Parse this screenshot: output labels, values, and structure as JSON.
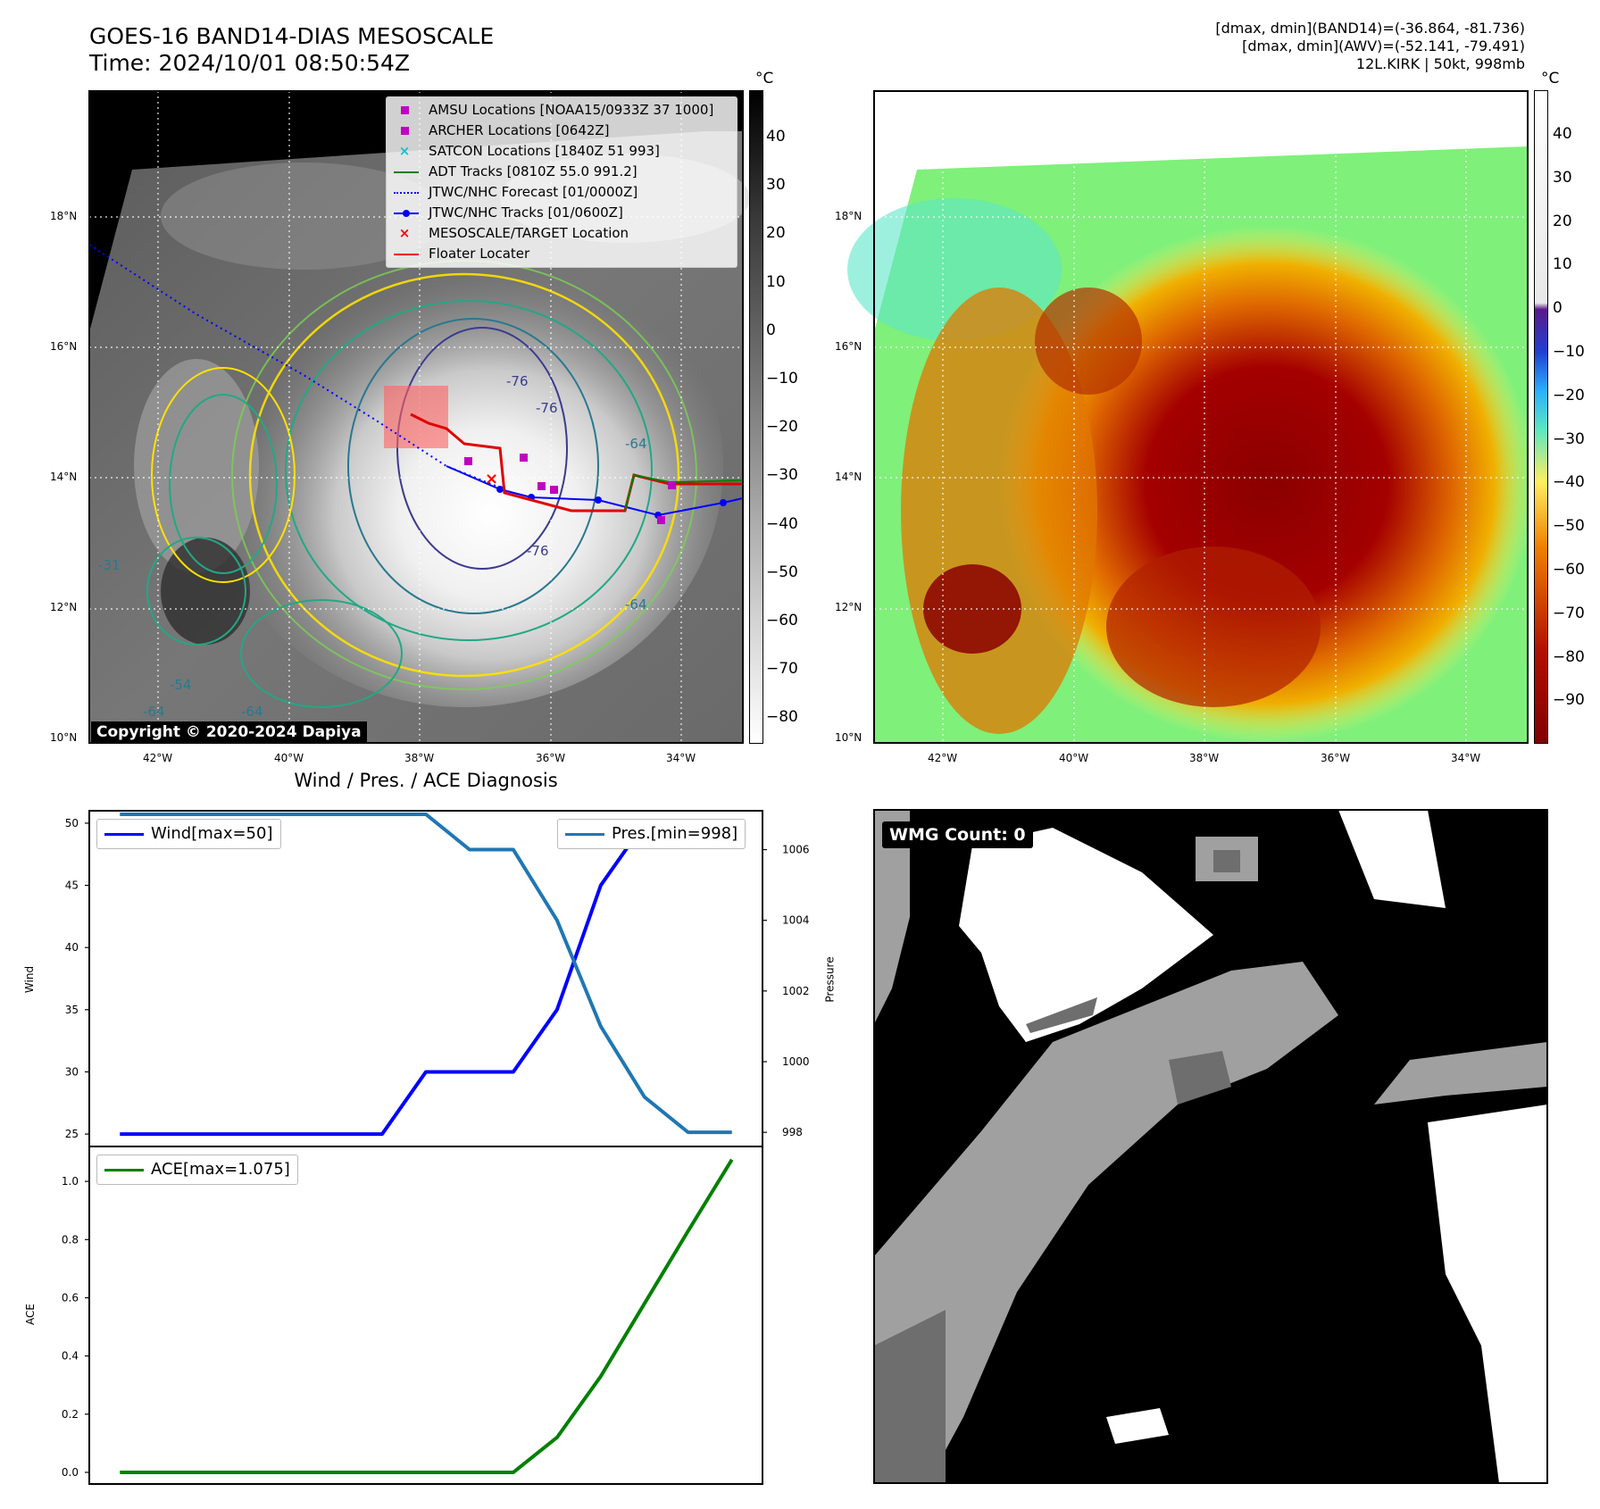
{
  "header": {
    "title": "GOES-16 BAND14-DIAS MESOSCALE",
    "time": "Time: 2024/10/01 08:50:54Z",
    "info_line1": "[dmax, dmin](BAND14)=(-36.864, -81.736)",
    "info_line2": "[dmax, dmin](AWV)=(-52.141, -79.491)",
    "info_line3": "12L.KIRK | 50kt, 998mb"
  },
  "map_axes": {
    "lat_labels": [
      "18°N",
      "16°N",
      "14°N",
      "12°N",
      "10°N"
    ],
    "lon_labels": [
      "42°W",
      "40°W",
      "38°W",
      "36°W",
      "34°W"
    ]
  },
  "left_map": {
    "legend": [
      {
        "label": "AMSU Locations [NOAA15/0933Z 37 1000]",
        "kind": "square",
        "color": "#c000c0"
      },
      {
        "label": "ARCHER Locations [0642Z]",
        "kind": "square",
        "color": "#c000c0"
      },
      {
        "label": "SATCON Locations [1840Z 51 993]",
        "kind": "x",
        "color": "#17becf"
      },
      {
        "label": "ADT Tracks [0810Z 55.0 991.2]",
        "kind": "line",
        "color": "#008000"
      },
      {
        "label": "JTWC/NHC Forecast [01/0000Z]",
        "kind": "dotted",
        "color": "#0000ff"
      },
      {
        "label": "JTWC/NHC Tracks [01/0600Z]",
        "kind": "linedot",
        "color": "#0000ff"
      },
      {
        "label": "MESOSCALE/TARGET Location",
        "kind": "x",
        "color": "#ff0000"
      },
      {
        "label": "Floater Locater",
        "kind": "line",
        "color": "#ff0000"
      }
    ],
    "contour_labels": [
      "-76",
      "-76",
      "-64",
      "-76",
      "-64",
      "-64",
      "-54",
      "-31",
      "-64"
    ],
    "copyright": "Copyright © 2020-2024 Dapiya",
    "colorbar": {
      "unit": "°C",
      "ticks": [
        "40",
        "30",
        "20",
        "10",
        "0",
        "−10",
        "−20",
        "−30",
        "−40",
        "−50",
        "−60",
        "−70",
        "−80"
      ],
      "range": [
        -85,
        50
      ]
    }
  },
  "right_map": {
    "colorbar": {
      "unit": "°C",
      "ticks": [
        "40",
        "30",
        "20",
        "10",
        "0",
        "−10",
        "−20",
        "−30",
        "−40",
        "−50",
        "−60",
        "−70",
        "−80",
        "−90"
      ],
      "range": [
        -100,
        50
      ]
    }
  },
  "diagnosis": {
    "title": "Wind / Pres. / ACE Diagnosis",
    "wind_ylabel": "Wind",
    "pressure_ylabel": "Pressure",
    "ace_ylabel": "ACE",
    "wind_legend": "Wind[max=50]",
    "pres_legend": "Pres.[min=998]",
    "ace_legend": "ACE[max=1.075]",
    "wind_ticks": [
      "50",
      "45",
      "40",
      "35",
      "30",
      "25"
    ],
    "pres_ticks": [
      "1006",
      "1004",
      "1002",
      "1000",
      "998"
    ],
    "ace_ticks": [
      "1.0",
      "0.8",
      "0.6",
      "0.4",
      "0.2",
      "0.0"
    ]
  },
  "wmg": {
    "label": "WMG Count: 0"
  },
  "chart_data": [
    {
      "type": "line",
      "title": "Wind / Pres. / ACE Diagnosis",
      "x": [
        0,
        1,
        2,
        3,
        4,
        5,
        6,
        7,
        8,
        9,
        10,
        11,
        12,
        13,
        14
      ],
      "ylabel": "Wind",
      "ylim": [
        24,
        51
      ],
      "series": [
        {
          "name": "Wind[max=50]",
          "color": "#0000ff",
          "axis": "left",
          "values": [
            25,
            25,
            25,
            25,
            25,
            25,
            25,
            30,
            30,
            30,
            35,
            45,
            50,
            50,
            50
          ]
        },
        {
          "name": "Pres.[min=998]",
          "color": "#1f77b4",
          "axis": "right",
          "ylabel": "Pressure",
          "ylim": [
            997.6,
            1007.1
          ],
          "values": [
            1007,
            1007,
            1007,
            1007,
            1007,
            1007,
            1007,
            1007,
            1006,
            1006,
            1004,
            1001,
            999,
            998,
            998
          ]
        }
      ]
    },
    {
      "type": "line",
      "ylabel": "ACE",
      "x": [
        0,
        1,
        2,
        3,
        4,
        5,
        6,
        7,
        8,
        9,
        10,
        11,
        12,
        13,
        14
      ],
      "ylim": [
        -0.04,
        1.12
      ],
      "series": [
        {
          "name": "ACE[max=1.075]",
          "color": "#008000",
          "values": [
            0,
            0,
            0,
            0,
            0,
            0,
            0,
            0,
            0,
            0,
            0.12,
            0.33,
            0.58,
            0.83,
            1.075
          ]
        }
      ]
    }
  ]
}
